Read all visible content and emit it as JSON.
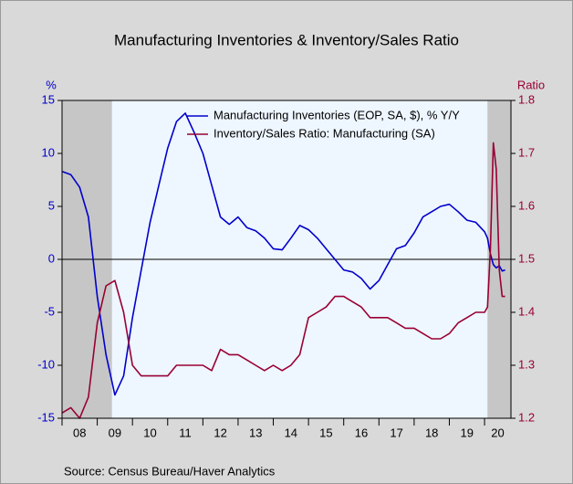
{
  "chart_data": {
    "type": "line",
    "title": "Manufacturing Inventories & Inventory/Sales Ratio",
    "y_label": "%",
    "y2_label": "Ratio",
    "source": "Source:  Census Bureau/Haver Analytics",
    "xlim": [
      2008,
      2020.75
    ],
    "xticks": [
      {
        "value": 2008,
        "label": "08"
      },
      {
        "value": 2009,
        "label": "09"
      },
      {
        "value": 2010,
        "label": "10"
      },
      {
        "value": 2011,
        "label": "11"
      },
      {
        "value": 2012,
        "label": "12"
      },
      {
        "value": 2013,
        "label": "13"
      },
      {
        "value": 2014,
        "label": "14"
      },
      {
        "value": 2015,
        "label": "15"
      },
      {
        "value": 2016,
        "label": "16"
      },
      {
        "value": 2017,
        "label": "17"
      },
      {
        "value": 2018,
        "label": "18"
      },
      {
        "value": 2019,
        "label": "19"
      },
      {
        "value": 2020,
        "label": "20"
      }
    ],
    "ylim": [
      -15,
      15
    ],
    "yticks": [
      -15,
      -10,
      -5,
      0,
      5,
      10,
      15
    ],
    "y2lim": [
      1.2,
      1.8
    ],
    "y2ticks": [
      1.2,
      1.3,
      1.4,
      1.5,
      1.6,
      1.7,
      1.8
    ],
    "shading": [
      [
        2008,
        2009.417
      ],
      [
        2020.083,
        2020.75
      ]
    ],
    "zero_line": true,
    "legend": "top",
    "x": [
      2008,
      2008.25,
      2008.5,
      2008.75,
      2009,
      2009.25,
      2009.5,
      2009.75,
      2010,
      2010.25,
      2010.5,
      2010.75,
      2011,
      2011.25,
      2011.5,
      2011.75,
      2012,
      2012.25,
      2012.5,
      2012.75,
      2013,
      2013.25,
      2013.5,
      2013.75,
      2014,
      2014.25,
      2014.5,
      2014.75,
      2015,
      2015.25,
      2015.5,
      2015.75,
      2016,
      2016.25,
      2016.5,
      2016.75,
      2017,
      2017.25,
      2017.5,
      2017.75,
      2018,
      2018.25,
      2018.5,
      2018.75,
      2019,
      2019.25,
      2019.5,
      2019.75,
      2020,
      2020.083,
      2020.167,
      2020.25,
      2020.333,
      2020.417,
      2020.5,
      2020.583
    ],
    "series": [
      {
        "name": "Manufacturing Inventories (EOP, SA, $), % Y/Y",
        "color": "#0000cc",
        "axis": "y",
        "values": [
          8.3,
          8.0,
          6.8,
          4.0,
          -3.5,
          -9.0,
          -12.8,
          -11.0,
          -5.5,
          -1.0,
          3.5,
          7.0,
          10.5,
          13.0,
          13.8,
          12.0,
          10.0,
          7.0,
          4.0,
          3.3,
          4.0,
          3.0,
          2.7,
          2.0,
          1.0,
          0.9,
          2.0,
          3.2,
          2.8,
          2.0,
          1.0,
          0.0,
          -1.0,
          -1.2,
          -1.8,
          -2.8,
          -2.0,
          -0.5,
          1.0,
          1.3,
          2.5,
          4.0,
          4.5,
          5.0,
          5.2,
          4.5,
          3.7,
          3.5,
          2.6,
          2.0,
          0.5,
          -0.5,
          -0.8,
          -0.6,
          -1.1,
          -1.0
        ]
      },
      {
        "name": "Inventory/Sales Ratio: Manufacturing (SA)",
        "color": "#990033",
        "axis": "y2",
        "values": [
          1.21,
          1.22,
          1.2,
          1.24,
          1.38,
          1.45,
          1.46,
          1.4,
          1.3,
          1.28,
          1.28,
          1.28,
          1.28,
          1.3,
          1.3,
          1.3,
          1.3,
          1.29,
          1.33,
          1.32,
          1.32,
          1.31,
          1.3,
          1.29,
          1.3,
          1.29,
          1.3,
          1.32,
          1.39,
          1.4,
          1.41,
          1.43,
          1.43,
          1.42,
          1.41,
          1.39,
          1.39,
          1.39,
          1.38,
          1.37,
          1.37,
          1.36,
          1.35,
          1.35,
          1.36,
          1.38,
          1.39,
          1.4,
          1.4,
          1.41,
          1.52,
          1.72,
          1.67,
          1.48,
          1.43,
          1.43
        ]
      }
    ]
  }
}
